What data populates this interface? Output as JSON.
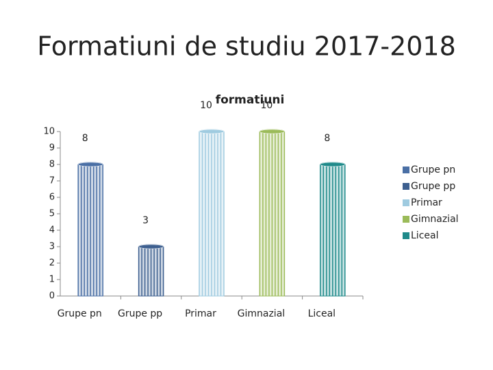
{
  "slide_title": "Formatiuni de studiu 2017-2018",
  "chart_data": {
    "type": "bar",
    "title": "formatiuni",
    "categories": [
      "Grupe pn",
      "Grupe pp",
      "Primar",
      "Gimnazial",
      "Liceal"
    ],
    "values": [
      8,
      3,
      10,
      10,
      8
    ],
    "colors": [
      "#4a6fa5",
      "#3d5f8f",
      "#9fcbe0",
      "#9bbb59",
      "#1f8a8a"
    ],
    "ylim": [
      0,
      10
    ],
    "yticks": [
      0,
      1,
      2,
      3,
      4,
      5,
      6,
      7,
      8,
      9,
      10
    ],
    "legend": "right"
  }
}
